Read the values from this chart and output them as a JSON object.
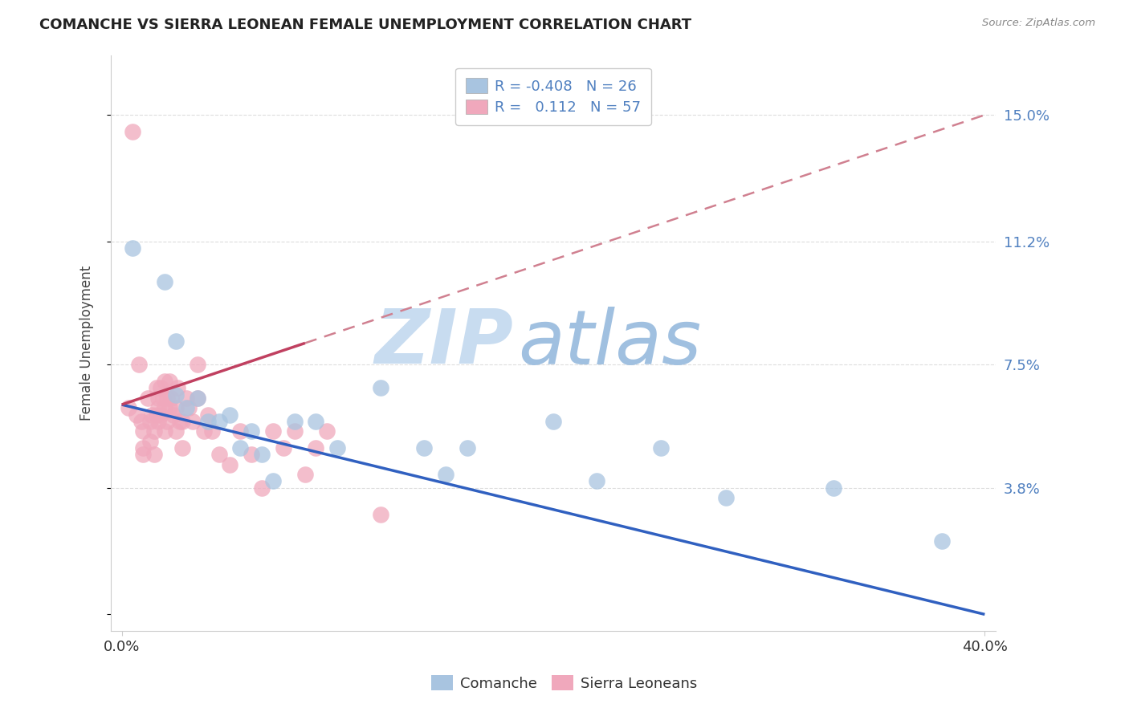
{
  "title": "COMANCHE VS SIERRA LEONEAN FEMALE UNEMPLOYMENT CORRELATION CHART",
  "source_text": "Source: ZipAtlas.com",
  "ylabel": "Female Unemployment",
  "yticks": [
    0.0,
    0.038,
    0.075,
    0.112,
    0.15
  ],
  "ytick_labels": [
    "",
    "3.8%",
    "7.5%",
    "11.2%",
    "15.0%"
  ],
  "xlim": [
    -0.005,
    0.405
  ],
  "ylim": [
    -0.005,
    0.168
  ],
  "xtick_left": "0.0%",
  "xtick_right": "40.0%",
  "legend_blue_r": "-0.408",
  "legend_blue_n": "26",
  "legend_pink_r": "0.112",
  "legend_pink_n": "57",
  "blue_color": "#A8C4E0",
  "pink_color": "#F0A8BC",
  "trend_blue_color": "#3060C0",
  "trend_pink_solid_color": "#C04060",
  "trend_pink_dash_color": "#D08090",
  "watermark_zip_color": "#C8DCF0",
  "watermark_atlas_color": "#A0C0E0",
  "label_color": "#5080C0",
  "title_color": "#222222",
  "comanche_x": [
    0.005,
    0.02,
    0.025,
    0.025,
    0.03,
    0.035,
    0.04,
    0.045,
    0.05,
    0.055,
    0.06,
    0.065,
    0.07,
    0.08,
    0.09,
    0.1,
    0.12,
    0.14,
    0.15,
    0.16,
    0.2,
    0.22,
    0.25,
    0.28,
    0.33,
    0.38
  ],
  "comanche_y": [
    0.11,
    0.1,
    0.082,
    0.066,
    0.062,
    0.065,
    0.058,
    0.058,
    0.06,
    0.05,
    0.055,
    0.048,
    0.04,
    0.058,
    0.058,
    0.05,
    0.068,
    0.05,
    0.042,
    0.05,
    0.058,
    0.04,
    0.05,
    0.035,
    0.038,
    0.022
  ],
  "sierra_leone_x": [
    0.003,
    0.005,
    0.007,
    0.008,
    0.009,
    0.01,
    0.01,
    0.01,
    0.012,
    0.013,
    0.013,
    0.014,
    0.015,
    0.015,
    0.016,
    0.016,
    0.017,
    0.017,
    0.017,
    0.018,
    0.018,
    0.019,
    0.02,
    0.02,
    0.02,
    0.021,
    0.021,
    0.022,
    0.022,
    0.023,
    0.024,
    0.025,
    0.025,
    0.026,
    0.027,
    0.028,
    0.028,
    0.03,
    0.031,
    0.033,
    0.035,
    0.035,
    0.038,
    0.04,
    0.042,
    0.045,
    0.05,
    0.055,
    0.06,
    0.065,
    0.07,
    0.075,
    0.08,
    0.085,
    0.09,
    0.095,
    0.12
  ],
  "sierra_leone_y": [
    0.062,
    0.145,
    0.06,
    0.075,
    0.058,
    0.055,
    0.05,
    0.048,
    0.065,
    0.058,
    0.052,
    0.06,
    0.055,
    0.048,
    0.068,
    0.06,
    0.065,
    0.062,
    0.058,
    0.068,
    0.06,
    0.065,
    0.07,
    0.062,
    0.055,
    0.058,
    0.065,
    0.07,
    0.062,
    0.065,
    0.06,
    0.062,
    0.055,
    0.068,
    0.058,
    0.058,
    0.05,
    0.065,
    0.062,
    0.058,
    0.075,
    0.065,
    0.055,
    0.06,
    0.055,
    0.048,
    0.045,
    0.055,
    0.048,
    0.038,
    0.055,
    0.05,
    0.055,
    0.042,
    0.05,
    0.055,
    0.03
  ]
}
